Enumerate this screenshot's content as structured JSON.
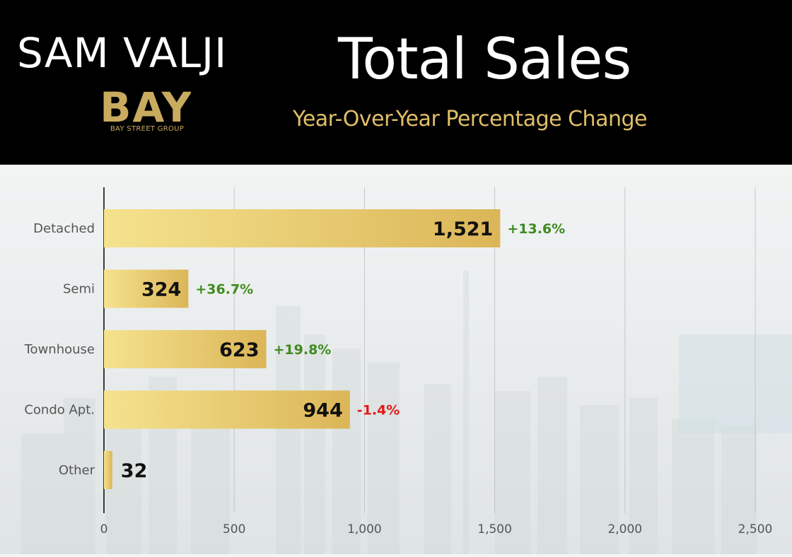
{
  "brand": {
    "name": "SAM VALJI",
    "logo_text": "BAY",
    "logo_caption": "BAY STREET GROUP"
  },
  "title": "Total Sales",
  "subtitle": "Year-Over-Year Percentage Change",
  "colors": {
    "header_bg": "#000000",
    "gold": "#e1bf69",
    "bar_light": "#f4e08a",
    "bar_dark": "#dcb85a",
    "positive": "#3f8a1f",
    "negative": "#e01b1b"
  },
  "chart_data": {
    "type": "bar",
    "orientation": "horizontal",
    "categories": [
      "Detached",
      "Semi",
      "Townhouse",
      "Condo Apt.",
      "Other"
    ],
    "values": [
      1521,
      324,
      623,
      944,
      32
    ],
    "value_labels": [
      "1,521",
      "324",
      "623",
      "944",
      "32"
    ],
    "changes": [
      "+13.6%",
      "+36.7%",
      "+19.8%",
      "-1.4%",
      ""
    ],
    "xlim": [
      0,
      2500
    ],
    "xticks": [
      0,
      500,
      1000,
      1500,
      2000,
      2500
    ],
    "xtick_labels": [
      "0",
      "500",
      "1,000",
      "1,500",
      "2,000",
      "2,500"
    ],
    "grid": true,
    "legend": "none"
  }
}
